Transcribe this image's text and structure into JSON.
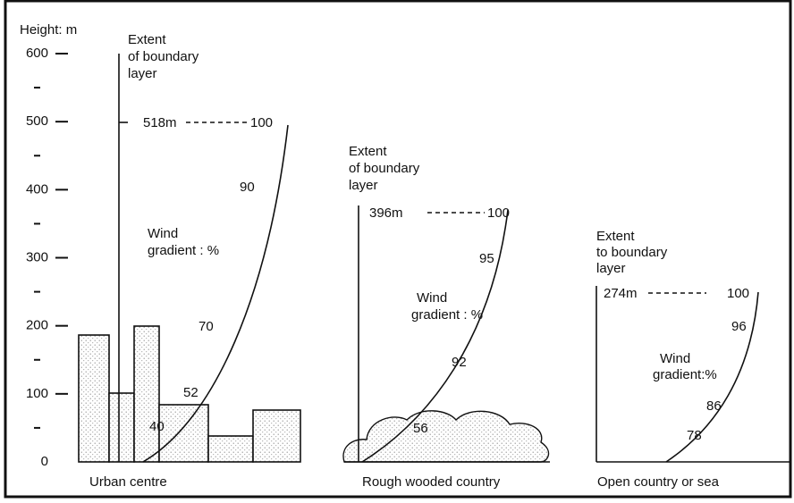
{
  "axis": {
    "title": "Height: m",
    "ticks": [
      0,
      100,
      200,
      300,
      400,
      500,
      600
    ]
  },
  "panels": [
    {
      "caption": "Urban centre",
      "extent_label": [
        "Extent",
        "of boundary",
        "layer"
      ],
      "top_label": "518m",
      "gradient_label": [
        "Wind",
        "gradient : %"
      ],
      "curve_labels": [
        "100",
        "90",
        "70",
        "52",
        "40"
      ]
    },
    {
      "caption": "Rough wooded country",
      "extent_label": [
        "Extent",
        "of boundary",
        "layer"
      ],
      "top_label": "396m",
      "gradient_label": [
        "Wind",
        "gradient : %"
      ],
      "curve_labels": [
        "100",
        "95",
        "92",
        "56"
      ]
    },
    {
      "caption": "Open country or sea",
      "extent_label": [
        "Extent",
        "to boundary",
        "layer"
      ],
      "top_label": "274m",
      "gradient_label": [
        "Wind",
        "gradient:%"
      ],
      "curve_labels": [
        "100",
        "96",
        "86",
        "78"
      ]
    }
  ]
}
